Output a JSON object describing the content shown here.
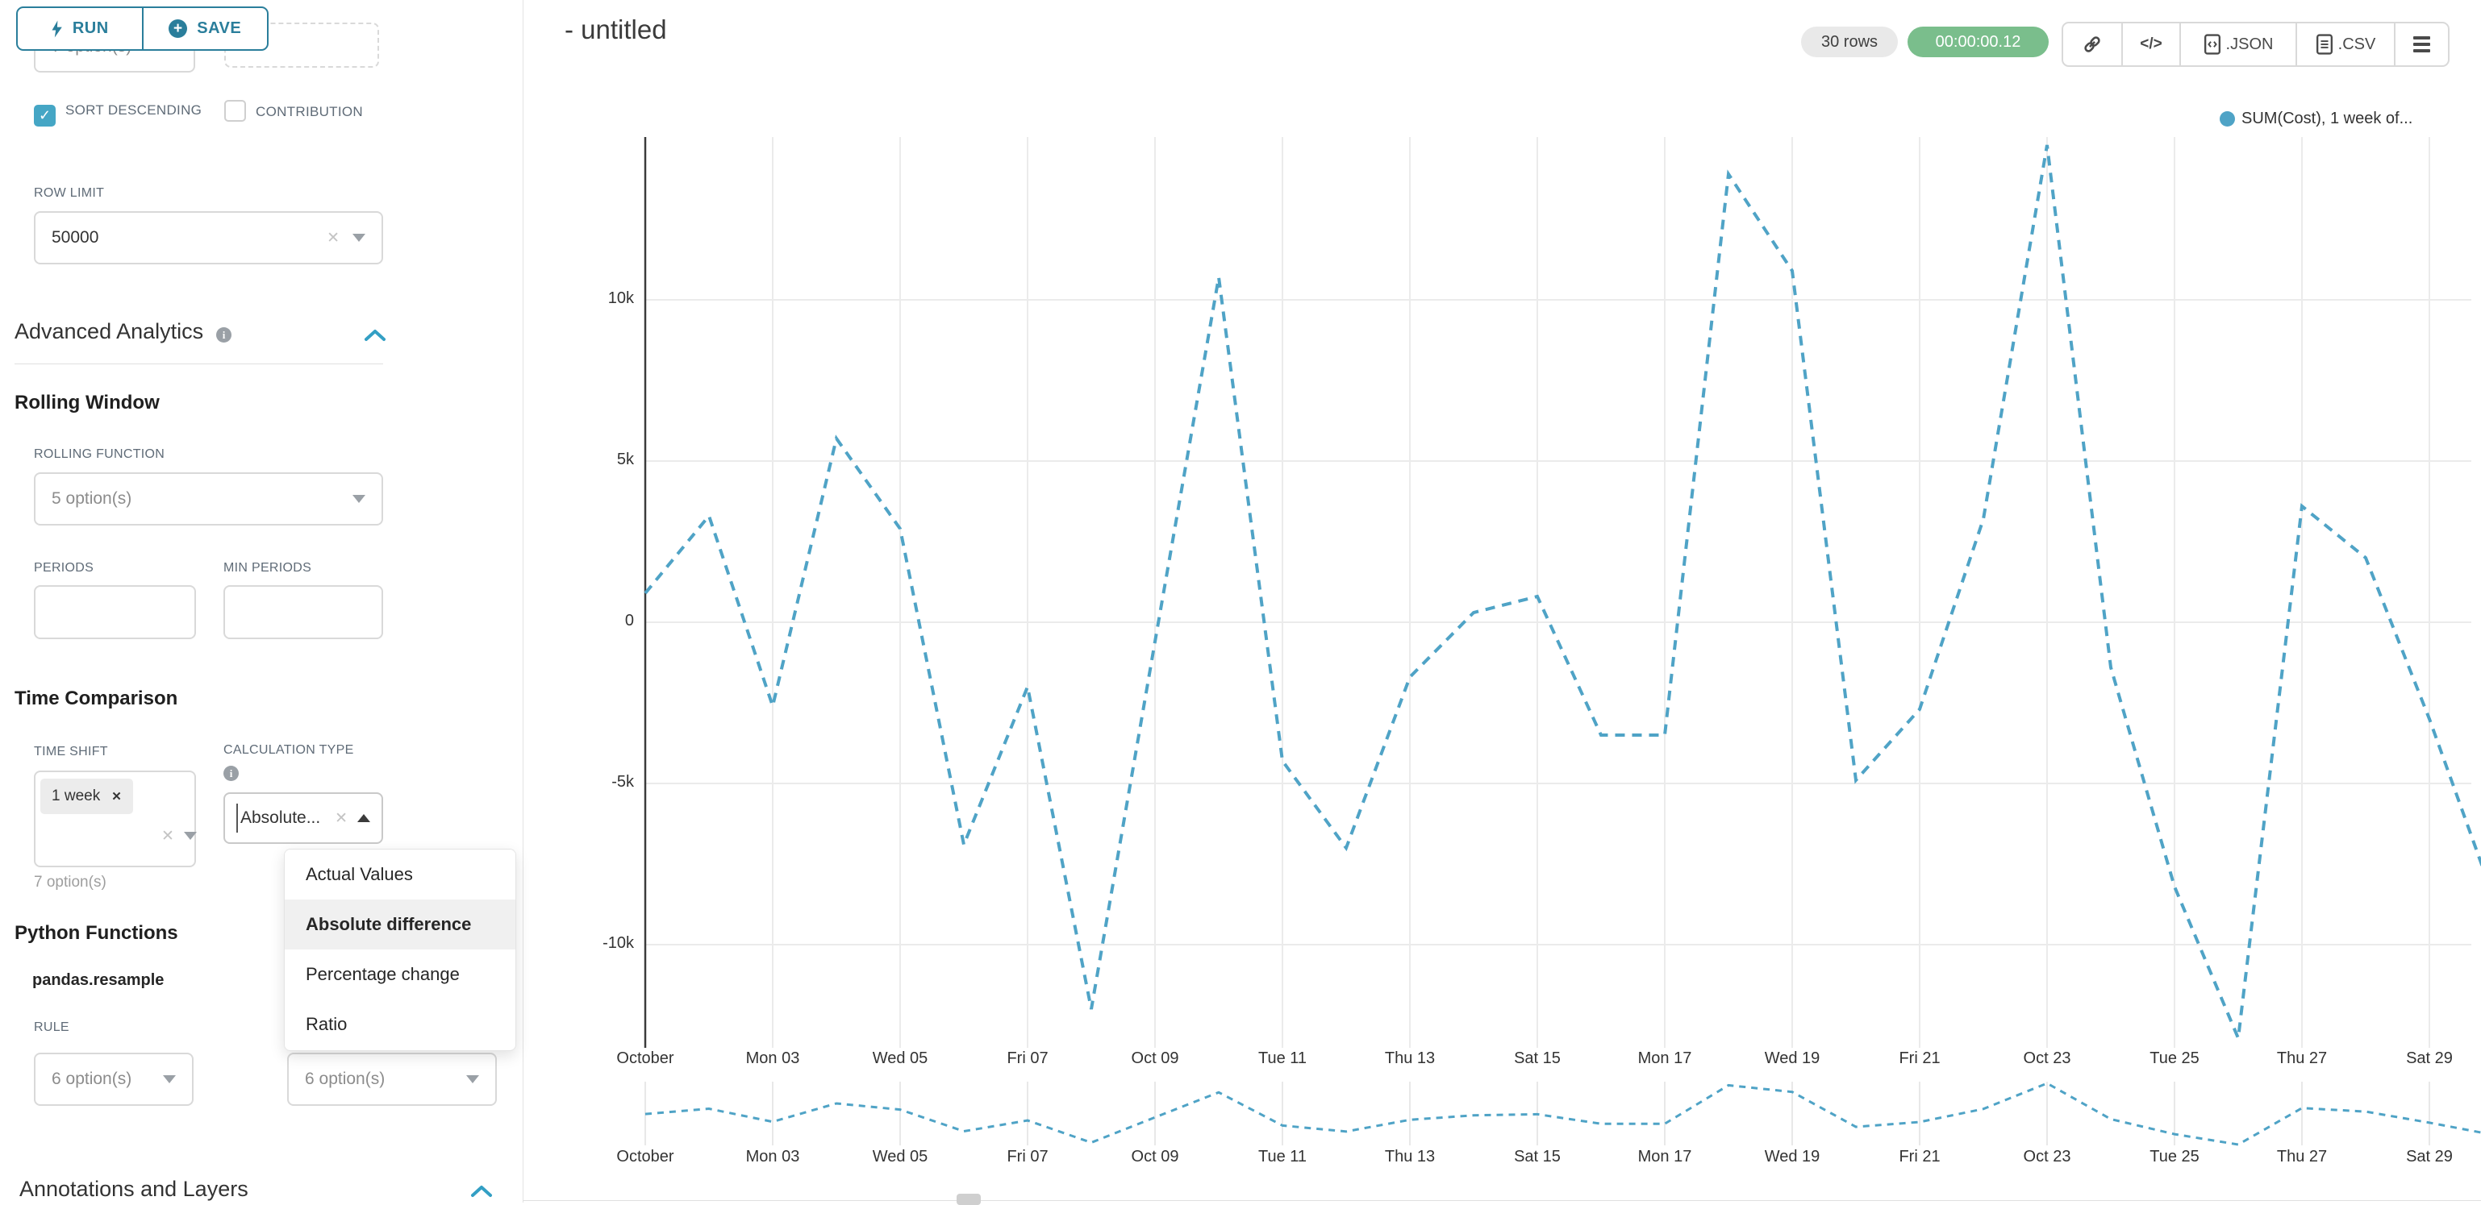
{
  "toolbar": {
    "run": "RUN",
    "save": "SAVE"
  },
  "sidebar": {
    "top_select_value": "7 option(s)",
    "sort_descending": {
      "label": "SORT DESCENDING",
      "checked": true
    },
    "contribution": {
      "label": "CONTRIBUTION",
      "checked": false
    },
    "row_limit": {
      "label": "ROW LIMIT",
      "value": "50000"
    },
    "advanced_analytics_title": "Advanced Analytics",
    "rolling_window": {
      "title": "Rolling Window",
      "rolling_function_label": "ROLLING FUNCTION",
      "rolling_function_value": "5 option(s)",
      "periods_label": "PERIODS",
      "min_periods_label": "MIN PERIODS"
    },
    "time_comparison": {
      "title": "Time Comparison",
      "time_shift_label": "TIME SHIFT",
      "time_shift_tag": "1 week",
      "time_shift_hint": "7 option(s)",
      "calculation_type_label": "CALCULATION TYPE",
      "calculation_type_value": "Absolute...",
      "calculation_type_options": [
        "Actual Values",
        "Absolute difference",
        "Percentage change",
        "Ratio"
      ],
      "calculation_type_selected": "Absolute difference"
    },
    "python_functions": {
      "title": "Python Functions",
      "subtitle": "pandas.resample",
      "rule_label": "RULE",
      "rule_value": "6 option(s)",
      "method_value": "6 option(s)"
    },
    "annotations_title": "Annotations and Layers"
  },
  "header": {
    "title": "- untitled",
    "rows_badge": "30 rows",
    "timer": "00:00:00.12",
    "export_json": ".JSON",
    "export_csv": ".CSV"
  },
  "colors": {
    "accent_teal": "#2A7E9B",
    "checkbox_blue": "#45A6C5",
    "line_blue": "#4FA3C6",
    "timer_green": "#7ABE8C",
    "badge_grey": "#E9E9E9"
  },
  "chart_data": {
    "type": "line",
    "title": "- untitled",
    "legend_label": "SUM(Cost), 1 week of...",
    "series": [
      {
        "name": "SUM(Cost), 1 week offset",
        "x": [
          "Oct 01",
          "Oct 02",
          "Oct 03",
          "Oct 04",
          "Oct 05",
          "Oct 06",
          "Oct 07",
          "Oct 08",
          "Oct 09",
          "Oct 10",
          "Oct 11",
          "Oct 12",
          "Oct 13",
          "Oct 14",
          "Oct 15",
          "Oct 16",
          "Oct 17",
          "Oct 18",
          "Oct 19",
          "Oct 20",
          "Oct 21",
          "Oct 22",
          "Oct 23",
          "Oct 24",
          "Oct 25",
          "Oct 26",
          "Oct 27",
          "Oct 28",
          "Oct 29",
          "Oct 30"
        ],
        "values": [
          900,
          3300,
          -2600,
          5700,
          2900,
          -6900,
          -2000,
          -12000,
          -600,
          10700,
          -4300,
          -7000,
          -1700,
          300,
          800,
          -3500,
          -3500,
          13900,
          10900,
          -4900,
          -2700,
          3200,
          14800,
          -1400,
          -8200,
          -12900,
          3600,
          2000,
          -3000,
          -8500
        ]
      }
    ],
    "x_tick_labels": [
      "October",
      "Mon 03",
      "Wed 05",
      "Fri 07",
      "Oct 09",
      "Tue 11",
      "Thu 13",
      "Sat 15",
      "Mon 17",
      "Wed 19",
      "Fri 21",
      "Oct 23",
      "Tue 25",
      "Thu 27",
      "Sat 29"
    ],
    "y_tick_labels": [
      "10k",
      "5k",
      "0",
      "-5k",
      "-10k"
    ],
    "y_tick_values": [
      10000,
      5000,
      0,
      -5000,
      -10000
    ],
    "ylim": [
      -13250,
      15050
    ],
    "grid": true,
    "line_style": "dashed",
    "color": "#4FA3C6",
    "legend_position": "top-right",
    "has_mini_preview": true
  }
}
